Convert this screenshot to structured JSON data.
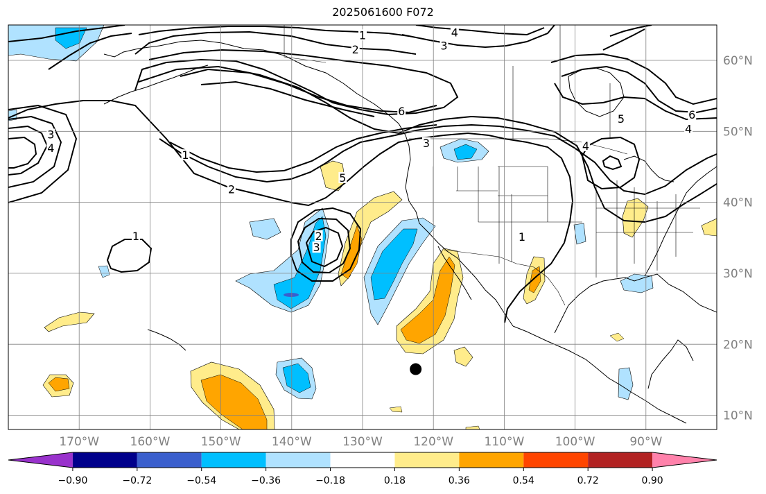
{
  "title": "2025061600 F072",
  "map": {
    "lon_range": [
      -180,
      -80
    ],
    "lat_range": [
      8,
      65
    ],
    "lon_ticks": [
      -170,
      -160,
      -150,
      -140,
      -130,
      -120,
      -110,
      -100,
      -90
    ],
    "lon_labels": [
      "170°W",
      "160°W",
      "150°W",
      "140°W",
      "130°W",
      "120°W",
      "110°W",
      "100°W",
      "90°W"
    ],
    "lat_ticks": [
      10,
      20,
      30,
      40,
      50,
      60
    ],
    "lat_labels": [
      "10°N",
      "20°N",
      "30°N",
      "40°N",
      "50°N",
      "60°N"
    ],
    "grid": true,
    "marker": {
      "lon": -122.5,
      "lat": 16.5
    },
    "contour_labels": [
      {
        "text": "1",
        "lon": -130,
        "lat": 63.5
      },
      {
        "text": "2",
        "lon": -131,
        "lat": 61.5
      },
      {
        "text": "4",
        "lon": -117,
        "lat": 63.9
      },
      {
        "text": "3",
        "lon": -118.5,
        "lat": 62.0
      },
      {
        "text": "6",
        "lon": -124.5,
        "lat": 52.8
      },
      {
        "text": "5",
        "lon": -93.5,
        "lat": 51.7
      },
      {
        "text": "6",
        "lon": -83.5,
        "lat": 52.3
      },
      {
        "text": "4",
        "lon": -84,
        "lat": 50.3
      },
      {
        "text": "4",
        "lon": -98.5,
        "lat": 47.9
      },
      {
        "text": "3",
        "lon": -174,
        "lat": 49.5
      },
      {
        "text": "4",
        "lon": -174,
        "lat": 47.6
      },
      {
        "text": "1",
        "lon": -155,
        "lat": 46.6
      },
      {
        "text": "2",
        "lon": -148.5,
        "lat": 41.8
      },
      {
        "text": "3",
        "lon": -121,
        "lat": 48.3
      },
      {
        "text": "5",
        "lon": -132.8,
        "lat": 43.4
      },
      {
        "text": "1",
        "lon": -162,
        "lat": 35.2
      },
      {
        "text": "3",
        "lon": -136.5,
        "lat": 33.6
      },
      {
        "text": "2",
        "lon": -136.2,
        "lat": 35.2
      },
      {
        "text": "1",
        "lon": -107.5,
        "lat": 35.1
      }
    ]
  },
  "colorbar": {
    "tick_labels": [
      "−0.90",
      "−0.72",
      "−0.54",
      "−0.36",
      "−0.18",
      "0.18",
      "0.36",
      "0.54",
      "0.72",
      "0.90"
    ],
    "colors": [
      "#9932cc",
      "#00008b",
      "#3a5fcd",
      "#00bfff",
      "#b0e2ff",
      "#ffffff",
      "#ffec8b",
      "#ffa500",
      "#ff4500",
      "#b22222",
      "#ff82ab"
    ]
  },
  "chart_data": {
    "type": "heatmap",
    "title": "2025061600 F072",
    "levels": [
      -0.9,
      -0.72,
      -0.54,
      -0.36,
      -0.18,
      0.18,
      0.36,
      0.54,
      0.72,
      0.9
    ],
    "extend": "both",
    "xlim": [
      -180,
      -80
    ],
    "ylim": [
      8,
      65
    ],
    "contour_levels": [
      1,
      2,
      3,
      4,
      5,
      6
    ],
    "marker": {
      "lon": -122.5,
      "lat": 16.5
    }
  }
}
